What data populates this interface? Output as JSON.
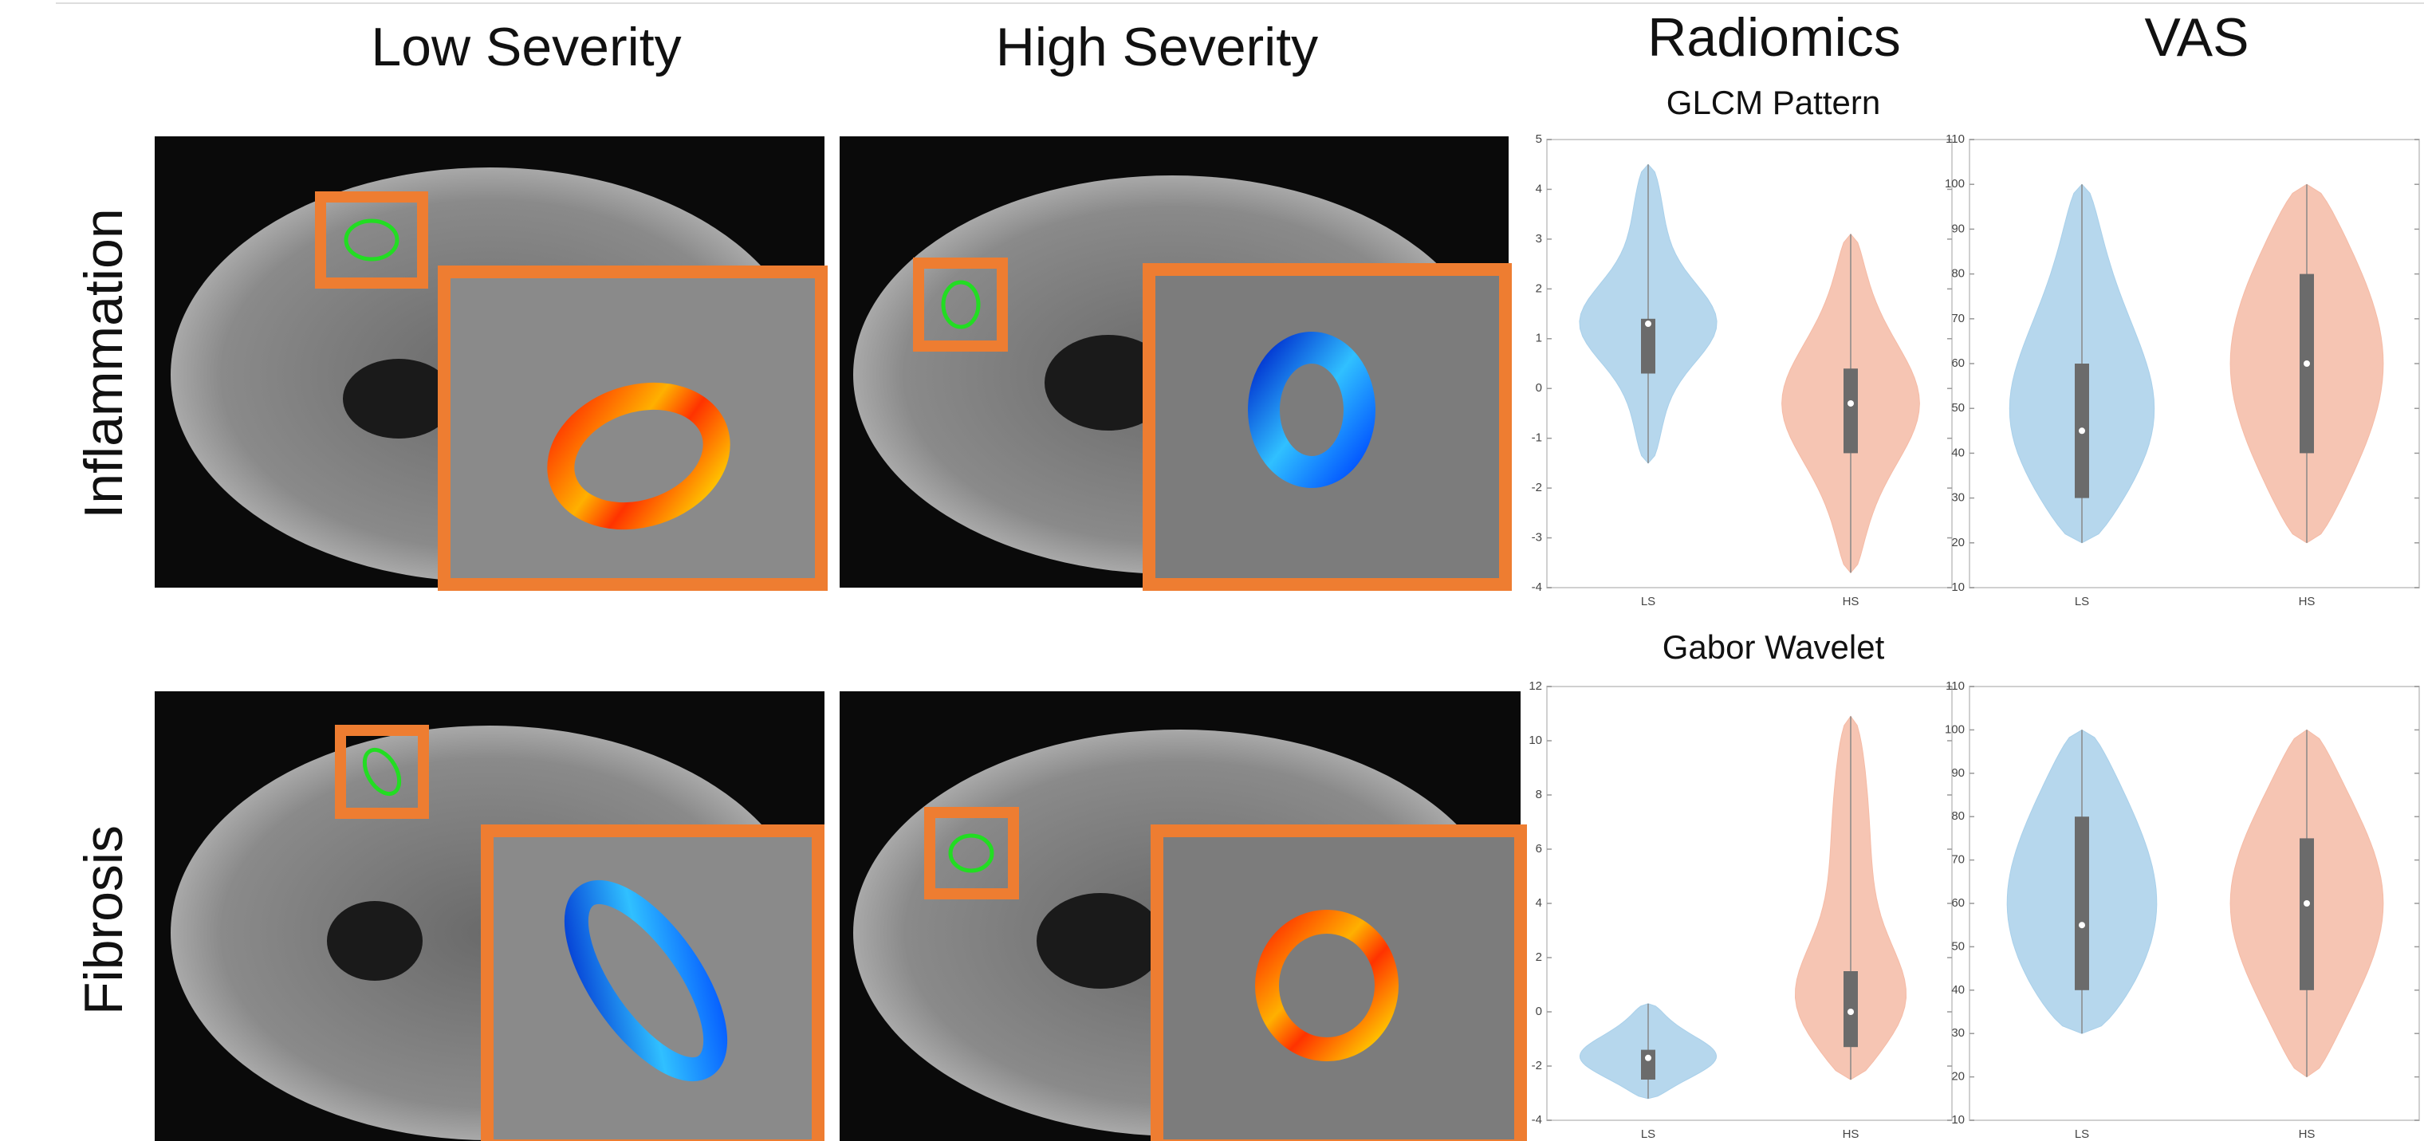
{
  "headers": {
    "low": "Low Severity",
    "high": "High Severity",
    "radiomics": "Radiomics",
    "vas": "VAS"
  },
  "rows": [
    "Inflammation",
    "Fibrosis"
  ],
  "chart_data": [
    {
      "type": "violin",
      "title": "GLCM Pattern",
      "categories": [
        "LS",
        "HS"
      ],
      "ylim": [
        -4,
        5
      ],
      "yticks": [
        -4,
        -3,
        -2,
        -1,
        0,
        1,
        2,
        3,
        4,
        5
      ],
      "boxes": [
        {
          "color": "#a9d0ea",
          "min": -1.5,
          "q1": 0.3,
          "median": 1.3,
          "q3": 1.4,
          "max": 4.5
        },
        {
          "color": "#f5bba6",
          "min": -3.7,
          "q1": -1.3,
          "median": -0.3,
          "q3": 0.4,
          "max": 3.1
        }
      ]
    },
    {
      "type": "violin",
      "categories": [
        "LS",
        "HS"
      ],
      "ylim": [
        10,
        110
      ],
      "yticks": [
        10,
        20,
        30,
        40,
        50,
        60,
        70,
        80,
        90,
        100,
        110
      ],
      "boxes": [
        {
          "color": "#a9d0ea",
          "min": 20,
          "q1": 30,
          "median": 45,
          "q3": 60,
          "max": 100
        },
        {
          "color": "#f5bba6",
          "min": 20,
          "q1": 40,
          "median": 60,
          "q3": 80,
          "max": 100
        }
      ]
    },
    {
      "type": "violin",
      "title": "Gabor Wavelet",
      "categories": [
        "LS",
        "HS"
      ],
      "ylim": [
        -4,
        12
      ],
      "yticks": [
        -4,
        -2,
        0,
        2,
        4,
        6,
        8,
        10,
        12
      ],
      "boxes": [
        {
          "color": "#a9d0ea",
          "min": -3.2,
          "q1": -2.5,
          "median": -1.7,
          "q3": -1.4,
          "max": 0.3
        },
        {
          "color": "#f5bba6",
          "min": -2.5,
          "q1": -1.3,
          "median": 0,
          "q3": 1.5,
          "max": 10.9
        }
      ]
    },
    {
      "type": "violin",
      "categories": [
        "LS",
        "HS"
      ],
      "ylim": [
        10,
        110
      ],
      "yticks": [
        10,
        20,
        30,
        40,
        50,
        60,
        70,
        80,
        90,
        100,
        110
      ],
      "boxes": [
        {
          "color": "#a9d0ea",
          "min": 30,
          "q1": 40,
          "median": 55,
          "q3": 80,
          "max": 100
        },
        {
          "color": "#f5bba6",
          "min": 20,
          "q1": 40,
          "median": 60,
          "q3": 75,
          "max": 100
        }
      ]
    }
  ]
}
